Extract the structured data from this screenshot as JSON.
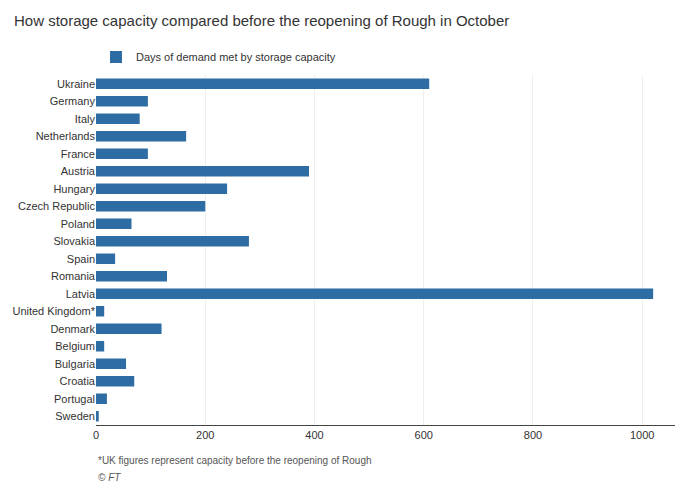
{
  "chart_data": {
    "type": "bar",
    "orientation": "horizontal",
    "title": "How storage capacity compared before the reopening of Rough in October",
    "categories": [
      "Ukraine",
      "Germany",
      "Italy",
      "Netherlands",
      "France",
      "Austria",
      "Hungary",
      "Czech Republic",
      "Poland",
      "Slovakia",
      "Spain",
      "Romania",
      "Latvia",
      "United Kingdom*",
      "Denmark",
      "Belgium",
      "Bulgaria",
      "Croatia",
      "Portugal",
      "Sweden"
    ],
    "series": [
      {
        "name": "Days of demand met by storage capacity",
        "color": "#2e6da4",
        "values": [
          610,
          95,
          80,
          165,
          95,
          390,
          240,
          200,
          65,
          280,
          35,
          130,
          1020,
          15,
          120,
          15,
          55,
          70,
          20,
          5
        ]
      }
    ],
    "xlim": [
      0,
      1060
    ],
    "xticks": [
      0,
      200,
      400,
      600,
      800,
      1000
    ],
    "grid": true,
    "legend": "upper left",
    "annotations": [
      "*UK figures represent capacity before the reopening of Rough",
      "© FT"
    ]
  }
}
